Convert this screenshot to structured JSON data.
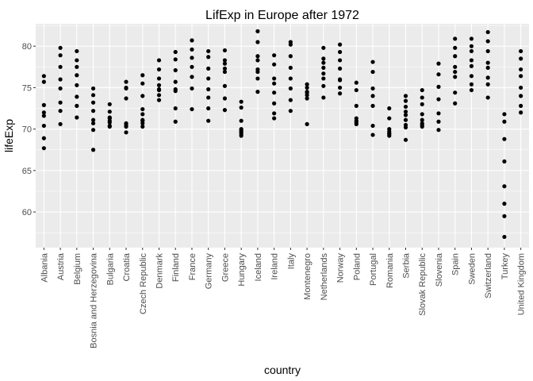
{
  "chart_data": {
    "type": "scatter",
    "title": "LifExp in Europe after 1972",
    "xlabel": "country",
    "ylabel": "lifeExp",
    "ylim": [
      55.7,
      82.7
    ],
    "yticks": [
      60,
      65,
      70,
      75,
      80
    ],
    "grid": true,
    "colors": {
      "panel": "#ebebeb",
      "grid_major": "#ffffff",
      "point": "#000000",
      "tick": "#333333"
    },
    "categories": [
      "Albania",
      "Austria",
      "Belgium",
      "Bosnia and Herzegovina",
      "Bulgaria",
      "Croatia",
      "Czech Republic",
      "Denmark",
      "Finland",
      "France",
      "Germany",
      "Greece",
      "Hungary",
      "Iceland",
      "Ireland",
      "Italy",
      "Montenegro",
      "Netherlands",
      "Norway",
      "Poland",
      "Portugal",
      "Romania",
      "Serbia",
      "Slovak Republic",
      "Slovenia",
      "Spain",
      "Sweden",
      "Switzerland",
      "Turkey",
      "United Kingdom"
    ],
    "values": [
      [
        67.7,
        68.9,
        70.4,
        71.6,
        72.0,
        72.9,
        75.7,
        76.4
      ],
      [
        70.6,
        72.2,
        73.2,
        74.9,
        76.0,
        77.5,
        78.9,
        79.8
      ],
      [
        71.4,
        72.8,
        73.9,
        75.3,
        76.5,
        77.5,
        78.3,
        79.4
      ],
      [
        67.5,
        69.9,
        70.7,
        71.1,
        72.2,
        73.2,
        74.1,
        74.9
      ],
      [
        70.3,
        70.4,
        70.8,
        71.0,
        71.3,
        71.4,
        72.1,
        73.0
      ],
      [
        69.6,
        70.3,
        70.5,
        70.7,
        73.7,
        74.9,
        75.0,
        75.7
      ],
      [
        70.3,
        70.7,
        71.0,
        71.1,
        71.8,
        72.4,
        74.0,
        75.5,
        76.5
      ],
      [
        73.5,
        74.1,
        74.7,
        74.8,
        75.3,
        76.1,
        77.2,
        78.3
      ],
      [
        70.9,
        72.5,
        74.6,
        74.8,
        75.7,
        77.1,
        78.4,
        79.3
      ],
      [
        72.4,
        74.9,
        76.3,
        77.5,
        78.6,
        79.6,
        80.7
      ],
      [
        71.0,
        72.5,
        73.8,
        74.8,
        76.1,
        77.3,
        78.7,
        79.4
      ],
      [
        72.3,
        73.7,
        75.2,
        76.9,
        77.3,
        77.9,
        78.3,
        79.5
      ],
      [
        69.2,
        69.4,
        69.6,
        69.7,
        69.9,
        70.0,
        71.0,
        72.6,
        73.3
      ],
      [
        74.5,
        76.1,
        76.9,
        77.2,
        78.3,
        78.8,
        80.5,
        81.8
      ],
      [
        71.3,
        71.9,
        73.1,
        74.4,
        75.5,
        76.1,
        77.8,
        78.9
      ],
      [
        72.2,
        73.5,
        74.9,
        76.1,
        77.4,
        78.8,
        80.2,
        80.5
      ],
      [
        70.6,
        73.7,
        74.1,
        74.4,
        74.5,
        75.0,
        75.4
      ],
      [
        73.8,
        75.2,
        76.1,
        76.7,
        77.4,
        78.0,
        78.5,
        79.8
      ],
      [
        74.3,
        75.0,
        75.9,
        76.0,
        77.3,
        78.3,
        79.3,
        80.2
      ],
      [
        70.6,
        70.8,
        71.0,
        71.3,
        72.8,
        74.7,
        75.6
      ],
      [
        69.3,
        70.4,
        72.8,
        74.0,
        74.9,
        76.9,
        78.1
      ],
      [
        69.2,
        69.4,
        69.5,
        69.7,
        70.0,
        71.3,
        72.5
      ],
      [
        68.7,
        70.2,
        70.5,
        71.1,
        71.7,
        72.1,
        72.7,
        73.4,
        74.0
      ],
      [
        70.3,
        70.5,
        70.7,
        71.1,
        71.8,
        73.0,
        73.8,
        74.7
      ],
      [
        69.9,
        70.9,
        71.9,
        73.6,
        75.1,
        76.6,
        77.9
      ],
      [
        73.1,
        74.4,
        76.3,
        76.9,
        77.5,
        78.8,
        79.8,
        80.9
      ],
      [
        74.7,
        75.4,
        76.4,
        77.6,
        78.3,
        79.4,
        80.0,
        80.9
      ],
      [
        73.8,
        75.4,
        76.2,
        77.4,
        78.0,
        79.4,
        80.6,
        81.7
      ],
      [
        57.0,
        59.5,
        61.0,
        63.1,
        66.1,
        68.8,
        70.9,
        71.8
      ],
      [
        72.0,
        72.8,
        74.0,
        75.0,
        76.4,
        77.2,
        78.5,
        79.4
      ]
    ]
  }
}
